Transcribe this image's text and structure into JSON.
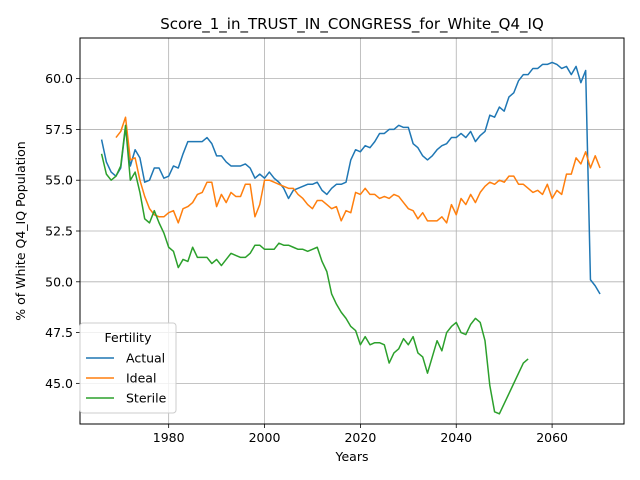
{
  "chart_data": {
    "type": "line",
    "title": "Score_1_in_TRUST_IN_CONGRESS_for_White_Q4_IQ",
    "xlabel": "Years",
    "ylabel": "% of White Q4_IQ Population",
    "xlim": [
      1961.5,
      2075
    ],
    "ylim": [
      43.0,
      62.0
    ],
    "xticks": [
      1980,
      2000,
      2020,
      2040,
      2060
    ],
    "yticks": [
      45.0,
      47.5,
      50.0,
      52.5,
      55.0,
      57.5,
      60.0
    ],
    "xtick_labels": [
      "1980",
      "2000",
      "2020",
      "2040",
      "2060"
    ],
    "ytick_labels": [
      "45.0",
      "47.5",
      "50.0",
      "52.5",
      "55.0",
      "57.5",
      "60.0"
    ],
    "grid": true,
    "legend": {
      "title": "Fertility",
      "position": "lower-left"
    },
    "series": [
      {
        "name": "Actual",
        "color": "#1f77b4",
        "x": [
          1966,
          1967,
          1968,
          1969,
          1970,
          1971,
          1972,
          1973,
          1974,
          1975,
          1976,
          1977,
          1978,
          1979,
          1980,
          1981,
          1982,
          1983,
          1984,
          1985,
          1986,
          1987,
          1988,
          1989,
          1990,
          1991,
          1992,
          1993,
          1994,
          1995,
          1996,
          1997,
          1998,
          1999,
          2000,
          2001,
          2002,
          2003,
          2004,
          2005,
          2006,
          2007,
          2008,
          2009,
          2010,
          2011,
          2012,
          2013,
          2014,
          2015,
          2016,
          2017,
          2018,
          2019,
          2020,
          2021,
          2022,
          2023,
          2024,
          2025,
          2026,
          2027,
          2028,
          2029,
          2030,
          2031,
          2032,
          2033,
          2034,
          2035,
          2036,
          2037,
          2038,
          2039,
          2040,
          2041,
          2042,
          2043,
          2044,
          2045,
          2046,
          2047,
          2048,
          2049,
          2050,
          2051,
          2052,
          2053,
          2054,
          2055,
          2056,
          2057,
          2058,
          2059,
          2060,
          2061,
          2062,
          2063,
          2064,
          2065,
          2066,
          2067,
          2068,
          2069,
          2070
        ],
        "y": [
          57.0,
          55.9,
          55.4,
          55.2,
          55.6,
          57.6,
          55.7,
          56.5,
          56.1,
          54.9,
          55.0,
          55.6,
          55.6,
          55.1,
          55.2,
          55.7,
          55.6,
          56.3,
          56.9,
          56.9,
          56.9,
          56.9,
          57.1,
          56.8,
          56.2,
          56.2,
          55.9,
          55.7,
          55.7,
          55.7,
          55.8,
          55.6,
          55.1,
          55.3,
          55.1,
          55.4,
          55.1,
          54.9,
          54.6,
          54.1,
          54.5,
          54.6,
          54.7,
          54.8,
          54.8,
          54.9,
          54.5,
          54.3,
          54.6,
          54.8,
          54.8,
          54.9,
          56.0,
          56.5,
          56.4,
          56.7,
          56.6,
          56.9,
          57.3,
          57.3,
          57.5,
          57.5,
          57.7,
          57.6,
          57.6,
          56.8,
          56.6,
          56.2,
          56.0,
          56.2,
          56.5,
          56.7,
          56.8,
          57.1,
          57.1,
          57.3,
          57.1,
          57.4,
          56.9,
          57.2,
          57.4,
          58.2,
          58.1,
          58.6,
          58.4,
          59.1,
          59.3,
          59.9,
          60.2,
          60.2,
          60.5,
          60.5,
          60.7,
          60.7,
          60.8,
          60.7,
          60.5,
          60.6,
          60.2,
          60.6,
          59.8,
          60.4,
          50.1,
          49.8,
          49.4
        ]
      },
      {
        "name": "Ideal",
        "color": "#ff7f0e",
        "x": [
          1969,
          1970,
          1971,
          1972,
          1973,
          1974,
          1975,
          1976,
          1977,
          1978,
          1979,
          1980,
          1981,
          1982,
          1983,
          1984,
          1985,
          1986,
          1987,
          1988,
          1989,
          1990,
          1991,
          1992,
          1993,
          1994,
          1995,
          1996,
          1997,
          1998,
          1999,
          2000,
          2001,
          2002,
          2003,
          2004,
          2005,
          2006,
          2007,
          2008,
          2009,
          2010,
          2011,
          2012,
          2013,
          2014,
          2015,
          2016,
          2017,
          2018,
          2019,
          2020,
          2021,
          2022,
          2023,
          2024,
          2025,
          2026,
          2027,
          2028,
          2029,
          2030,
          2031,
          2032,
          2033,
          2034,
          2035,
          2036,
          2037,
          2038,
          2039,
          2040,
          2041,
          2042,
          2043,
          2044,
          2045,
          2046,
          2047,
          2048,
          2049,
          2050,
          2051,
          2052,
          2053,
          2054,
          2055,
          2056,
          2057,
          2058,
          2059,
          2060,
          2061,
          2062,
          2063,
          2064,
          2065,
          2066,
          2067,
          2068,
          2069,
          2070
        ],
        "y": [
          57.1,
          57.4,
          58.1,
          56.0,
          56.1,
          55.0,
          54.2,
          53.6,
          53.3,
          53.2,
          53.2,
          53.4,
          53.5,
          52.9,
          53.6,
          53.7,
          53.9,
          54.3,
          54.4,
          54.9,
          54.9,
          53.7,
          54.3,
          53.9,
          54.4,
          54.2,
          54.2,
          54.8,
          54.8,
          53.2,
          53.8,
          55.0,
          55.0,
          54.9,
          54.8,
          54.7,
          54.6,
          54.6,
          54.3,
          54.1,
          53.8,
          53.6,
          54.0,
          54.0,
          53.8,
          53.6,
          53.7,
          53.0,
          53.5,
          53.4,
          54.4,
          54.3,
          54.6,
          54.3,
          54.3,
          54.1,
          54.2,
          54.1,
          54.3,
          54.2,
          53.9,
          53.6,
          53.5,
          53.1,
          53.4,
          53.0,
          53.0,
          53.0,
          53.2,
          52.9,
          53.8,
          53.3,
          54.1,
          53.8,
          54.3,
          53.9,
          54.4,
          54.7,
          54.9,
          54.8,
          55.0,
          54.9,
          55.2,
          55.2,
          54.8,
          54.8,
          54.6,
          54.4,
          54.5,
          54.3,
          54.8,
          54.1,
          54.5,
          54.3,
          55.3,
          55.3,
          56.1,
          55.8,
          56.4,
          55.6,
          56.2,
          55.6
        ]
      },
      {
        "name": "Sterile",
        "color": "#2ca02c",
        "x": [
          1966,
          1967,
          1968,
          1969,
          1970,
          1971,
          1972,
          1973,
          1974,
          1975,
          1976,
          1977,
          1978,
          1979,
          1980,
          1981,
          1982,
          1983,
          1984,
          1985,
          1986,
          1987,
          1988,
          1989,
          1990,
          1991,
          1992,
          1993,
          1994,
          1995,
          1996,
          1997,
          1998,
          1999,
          2000,
          2001,
          2002,
          2003,
          2004,
          2005,
          2006,
          2007,
          2008,
          2009,
          2010,
          2011,
          2012,
          2013,
          2014,
          2015,
          2016,
          2017,
          2018,
          2019,
          2020,
          2021,
          2022,
          2023,
          2024,
          2025,
          2026,
          2027,
          2028,
          2029,
          2030,
          2031,
          2032,
          2033,
          2034,
          2035,
          2036,
          2037,
          2038,
          2039,
          2040,
          2041,
          2042,
          2043,
          2044,
          2045,
          2046,
          2047,
          2048,
          2049,
          2050,
          2051,
          2052,
          2053,
          2054,
          2055
        ],
        "y": [
          56.3,
          55.3,
          55.0,
          55.2,
          55.7,
          57.7,
          55.0,
          55.4,
          54.4,
          53.1,
          52.9,
          53.5,
          52.9,
          52.4,
          51.7,
          51.5,
          50.7,
          51.1,
          51.0,
          51.7,
          51.2,
          51.2,
          51.2,
          50.9,
          51.1,
          50.8,
          51.1,
          51.4,
          51.3,
          51.2,
          51.2,
          51.4,
          51.8,
          51.8,
          51.6,
          51.6,
          51.6,
          51.9,
          51.8,
          51.8,
          51.7,
          51.6,
          51.6,
          51.5,
          51.6,
          51.7,
          51.0,
          50.5,
          49.4,
          48.9,
          48.5,
          48.2,
          47.8,
          47.6,
          46.9,
          47.3,
          46.9,
          47.0,
          47.0,
          46.9,
          46.0,
          46.5,
          46.7,
          47.2,
          46.9,
          47.3,
          46.5,
          46.3,
          45.5,
          46.3,
          47.1,
          46.6,
          47.5,
          47.8,
          48.0,
          47.5,
          47.4,
          47.9,
          48.2,
          48.0,
          47.1,
          44.9,
          43.6,
          43.5,
          44.0,
          44.5,
          45.0,
          45.5,
          46.0,
          46.2
        ]
      }
    ]
  }
}
